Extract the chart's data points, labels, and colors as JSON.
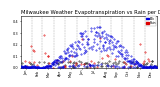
{
  "title": "Milwaukee Weather Evapotranspiration vs Rain per Day (Inches)",
  "legend_labels": [
    "ETo",
    "Rain"
  ],
  "legend_colors": [
    "#0000cc",
    "#cc0000"
  ],
  "background_color": "#ffffff",
  "plot_bg": "#ffffff",
  "grid_color": "#888888",
  "ylim": [
    0,
    0.45
  ],
  "title_fontsize": 3.8,
  "tick_fontsize": 2.5,
  "eto_color": "#0000dd",
  "rain_color": "#dd0000",
  "black_color": "#111111",
  "month_boundaries": [
    31,
    59,
    90,
    120,
    151,
    181,
    212,
    243,
    273,
    304,
    334
  ],
  "month_labels": [
    "Jan",
    "Feb",
    "Mar",
    "Apr",
    "May",
    "Jun",
    "Jul",
    "Aug",
    "Sep",
    "Oct",
    "Nov",
    "Dec"
  ],
  "month_ticks": [
    15,
    45,
    75,
    105,
    135,
    166,
    196,
    228,
    258,
    288,
    319,
    349
  ],
  "n_days": 365
}
